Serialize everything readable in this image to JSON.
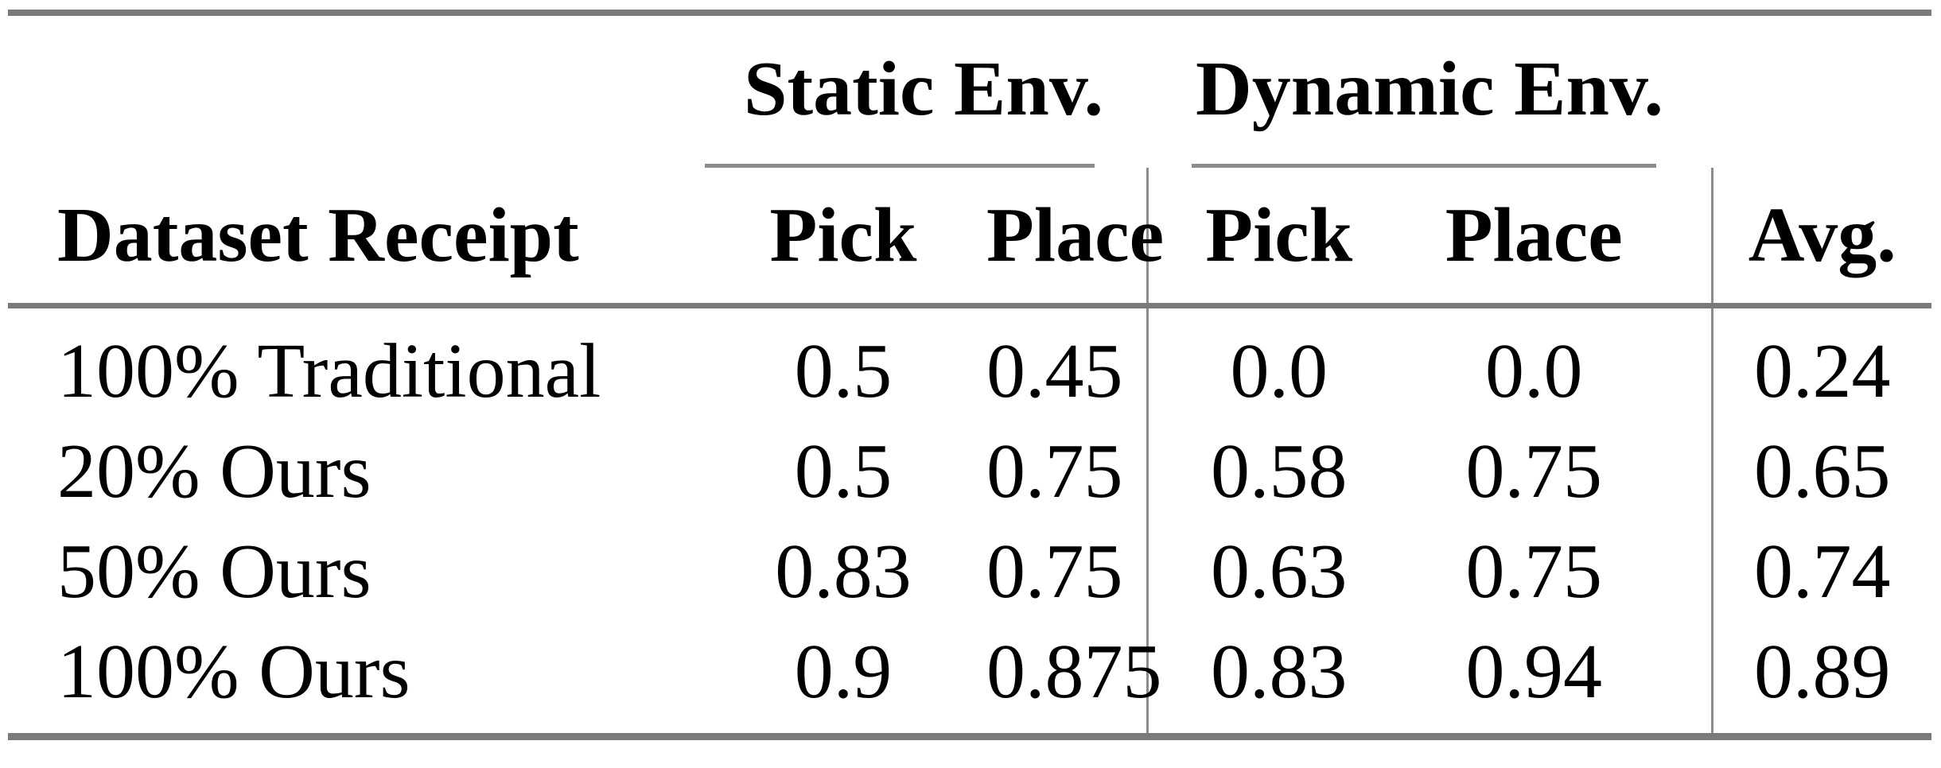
{
  "figure": {
    "type": "table",
    "group_headers": [
      {
        "label": "Static Env."
      },
      {
        "label": "Dynamic Env."
      }
    ],
    "columns": [
      "Dataset Receipt",
      "Pick",
      "Place",
      "Pick",
      "Place",
      "Avg."
    ],
    "rows": [
      {
        "label": "100% Traditional",
        "static_pick": "0.5",
        "static_place": "0.45",
        "dynamic_pick": "0.0",
        "dynamic_place": "0.0",
        "avg": "0.24"
      },
      {
        "label": "20% Ours",
        "static_pick": "0.5",
        "static_place": "0.75",
        "dynamic_pick": "0.58",
        "dynamic_place": "0.75",
        "avg": "0.65"
      },
      {
        "label": "50% Ours",
        "static_pick": "0.83",
        "static_place": "0.75",
        "dynamic_pick": "0.63",
        "dynamic_place": "0.75",
        "avg": "0.74"
      },
      {
        "label": "100% Ours",
        "static_pick": "0.9",
        "static_place": "0.875",
        "dynamic_pick": "0.83",
        "dynamic_place": "0.94",
        "avg": "0.89"
      }
    ],
    "colors": {
      "rule_heavy": "#7a7a7a",
      "rule_light": "#8c8c8c",
      "text": "#000000",
      "background": "#ffffff"
    }
  }
}
